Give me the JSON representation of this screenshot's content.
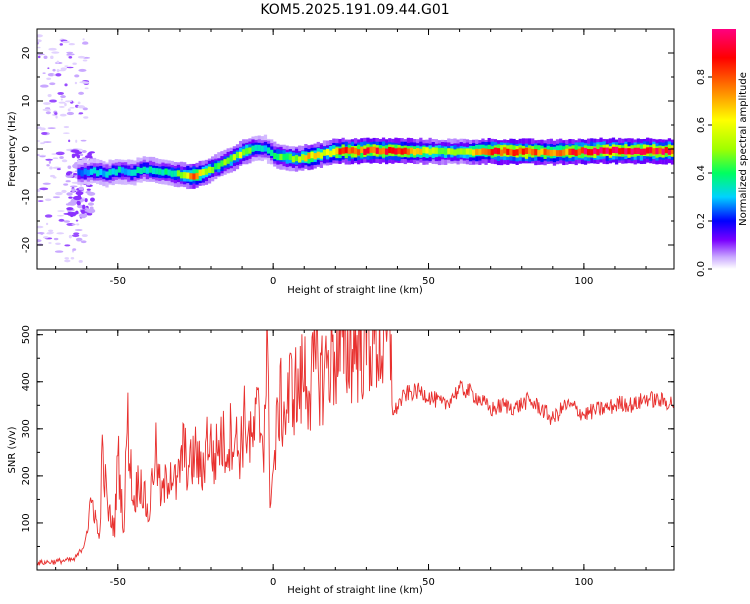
{
  "title": "KOM5.2025.191.09.44.G01",
  "chart_data": [
    {
      "type": "heatmap",
      "name": "spectrogram",
      "xlabel": "Height of straight line (km)",
      "ylabel": "Frequency (Hz)",
      "xlim": [
        -76,
        129
      ],
      "ylim": [
        -25,
        25
      ],
      "xticks": [
        -50,
        0,
        50,
        100
      ],
      "yticks": [
        -20,
        -10,
        0,
        10,
        20
      ],
      "xtick_labels": [
        "-50",
        "0",
        "50",
        "100"
      ],
      "ytick_labels": [
        "-20",
        "-10",
        "0",
        "10",
        "20"
      ],
      "colorbar": {
        "label": "Normalized spectral amplitude",
        "range": [
          0,
          1
        ],
        "ticks": [
          0.0,
          0.2,
          0.4,
          0.6,
          0.8
        ],
        "tick_labels": [
          "0.0",
          "0.2",
          "0.4",
          "0.6",
          "0.8"
        ],
        "colormap": [
          "#ffffff",
          "#c9a8ff",
          "#7a00ff",
          "#0000ff",
          "#00d2ff",
          "#00ff60",
          "#a0ff00",
          "#ffff00",
          "#ff8000",
          "#ff0000",
          "#ff0080"
        ]
      },
      "ridge": {
        "x": [
          -62,
          -58,
          -54,
          -50,
          -46,
          -42,
          -38,
          -34,
          -30,
          -26,
          -22,
          -18,
          -14,
          -10,
          -6,
          -3,
          0,
          4,
          8,
          12,
          16,
          20,
          30,
          40,
          50,
          60,
          70,
          80,
          90,
          100,
          110,
          120,
          129
        ],
        "freq": [
          -5,
          -4.7,
          -5.2,
          -4.5,
          -5,
          -4.2,
          -4.6,
          -5,
          -5.4,
          -5.6,
          -4.8,
          -3.5,
          -2.2,
          -0.8,
          0.3,
          0.2,
          -1.3,
          -1.8,
          -2,
          -1.5,
          -1,
          -0.5,
          -0.4,
          -0.4,
          -0.5,
          -0.6,
          -0.5,
          -0.6,
          -0.7,
          -0.5,
          -0.4,
          -0.4,
          -0.4
        ],
        "amplitude": [
          0.25,
          0.3,
          0.3,
          0.32,
          0.3,
          0.35,
          0.35,
          0.35,
          0.45,
          0.75,
          0.5,
          0.45,
          0.5,
          0.55,
          0.35,
          0.3,
          0.4,
          0.45,
          0.5,
          0.7,
          0.5,
          0.75,
          0.85,
          0.8,
          0.55,
          0.45,
          0.85,
          0.9,
          0.7,
          0.92,
          0.9,
          0.9,
          0.9
        ]
      }
    },
    {
      "type": "line",
      "name": "snr",
      "xlabel": "Height of straight line (km)",
      "ylabel": "SNR (v/v)",
      "xlim": [
        -76,
        129
      ],
      "ylim": [
        0,
        510
      ],
      "xticks": [
        -50,
        0,
        50,
        100
      ],
      "yticks": [
        100,
        200,
        300,
        400,
        500
      ],
      "xtick_labels": [
        "-50",
        "0",
        "50",
        "100"
      ],
      "ytick_labels": [
        "100",
        "200",
        "300",
        "400",
        "500"
      ],
      "color": "#e8302e",
      "series": [
        {
          "x": [
            -76,
            -70,
            -64,
            -61,
            -58,
            -56,
            -55,
            -53,
            -51,
            -50,
            -48,
            -47,
            -45,
            -43,
            -40,
            -38,
            -36,
            -33,
            -31,
            -29,
            -27,
            -25,
            -23,
            -21,
            -19,
            -17,
            -15,
            -13,
            -11,
            -9,
            -7,
            -5,
            -3,
            -2,
            -1,
            0,
            2,
            4,
            6,
            8,
            10,
            12,
            14,
            16,
            18,
            20,
            24,
            28,
            32,
            35,
            38,
            39,
            40,
            43,
            47,
            50,
            55,
            60,
            63,
            67,
            70,
            74,
            78,
            82,
            86,
            90,
            94,
            97,
            100,
            104,
            108,
            112,
            116,
            120,
            124,
            129
          ],
          "y": [
            15,
            18,
            22,
            50,
            150,
            60,
            240,
            120,
            90,
            250,
            80,
            330,
            140,
            200,
            110,
            260,
            150,
            220,
            170,
            260,
            210,
            250,
            200,
            290,
            230,
            280,
            260,
            300,
            250,
            320,
            260,
            330,
            280,
            480,
            170,
            200,
            360,
            330,
            400,
            370,
            420,
            390,
            440,
            410,
            450,
            460,
            470,
            485,
            495,
            480,
            470,
            330,
            350,
            375,
            380,
            370,
            350,
            385,
            380,
            360,
            340,
            350,
            345,
            360,
            345,
            320,
            350,
            345,
            330,
            340,
            345,
            355,
            350,
            365,
            360,
            355
          ]
        }
      ]
    }
  ]
}
